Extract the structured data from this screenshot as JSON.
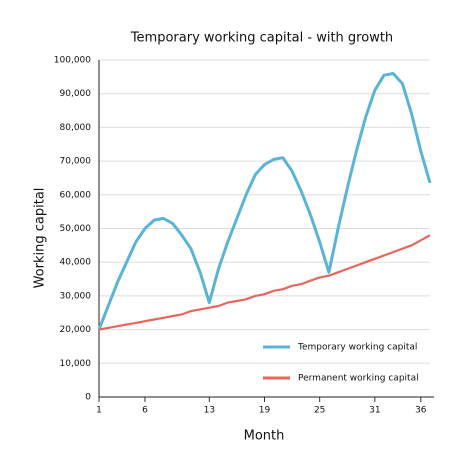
{
  "chart_data": {
    "type": "line",
    "title": "Temporary working capital - with growth",
    "x_label": "Month",
    "y_label": "Working capital",
    "x": [
      1,
      2,
      3,
      4,
      5,
      6,
      7,
      8,
      9,
      10,
      11,
      12,
      13,
      14,
      15,
      16,
      17,
      18,
      19,
      20,
      21,
      22,
      23,
      24,
      25,
      26,
      27,
      28,
      29,
      30,
      31,
      32,
      33,
      34,
      35,
      36,
      37
    ],
    "series": [
      {
        "name": "Temporary working capital",
        "color": "#5ab4d6",
        "values": [
          20000,
          27000,
          34000,
          40000,
          46000,
          50000,
          52500,
          53000,
          51500,
          48000,
          44000,
          37000,
          28000,
          38000,
          46000,
          53000,
          60000,
          66000,
          69000,
          70500,
          71000,
          67000,
          61000,
          54000,
          46000,
          37000,
          50000,
          62000,
          73000,
          83000,
          91000,
          95500,
          96000,
          93000,
          84000,
          73000,
          63500
        ]
      },
      {
        "name": "Permanent working capital",
        "color": "#e8665a",
        "values": [
          20000,
          20500,
          21000,
          21500,
          22000,
          22500,
          23000,
          23500,
          24000,
          24500,
          25500,
          26000,
          26500,
          27000,
          28000,
          28500,
          29000,
          30000,
          30500,
          31500,
          32000,
          33000,
          33500,
          34500,
          35500,
          36000,
          37000,
          38000,
          39000,
          40000,
          41000,
          42000,
          43000,
          44000,
          45000,
          46500,
          48000
        ]
      }
    ],
    "xlim": [
      1,
      37
    ],
    "xticks": [
      1,
      6,
      13,
      19,
      25,
      31,
      36
    ],
    "ylim": [
      0,
      100000
    ],
    "yticks": [
      0,
      {
        "value": 10000,
        "label": "10,000"
      },
      {
        "value": 20000,
        "label": "20,000"
      },
      {
        "value": 30000,
        "label": "30,000"
      },
      {
        "value": 40000,
        "label": "40,000"
      },
      {
        "value": 50000,
        "label": "50,000"
      },
      {
        "value": 60000,
        "label": "60,000"
      },
      {
        "value": 70000,
        "label": "70,000"
      },
      {
        "value": 80000,
        "label": "80,000"
      },
      {
        "value": 90000,
        "label": "90,000"
      },
      {
        "value": 100000,
        "label": "100,000"
      }
    ],
    "grid": true
  }
}
